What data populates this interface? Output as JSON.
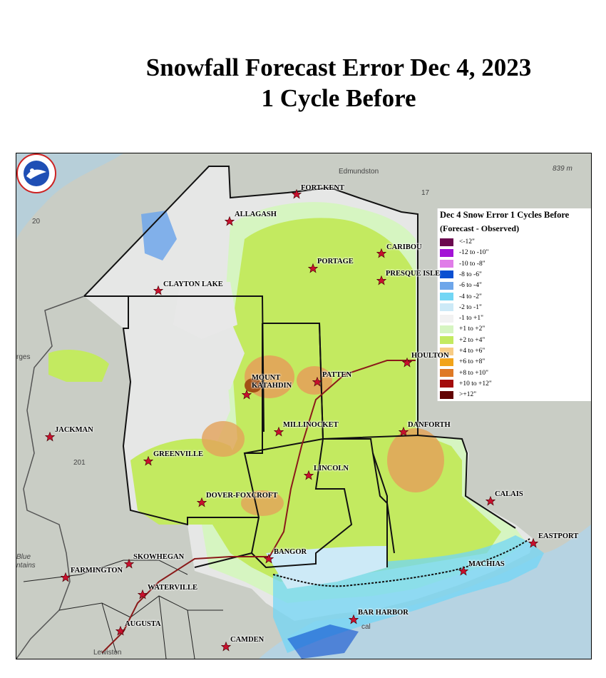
{
  "title": {
    "line1": "Snowfall Forecast Error Dec 4, 2023",
    "line2": "1 Cycle Before"
  },
  "legend": {
    "title": "Dec 4 Snow Error 1 Cycles Before",
    "subtitle": "(Forecast - Observed)",
    "items": [
      {
        "label": "<-12\"",
        "color": "#6b0a4f"
      },
      {
        "label": "-12 to -10\"",
        "color": "#a313d6"
      },
      {
        "label": "-10 to -8\"",
        "color": "#e07de8"
      },
      {
        "label": "-8 to -6\"",
        "color": "#0a4fd1"
      },
      {
        "label": "-6 to -4\"",
        "color": "#6ea6ea"
      },
      {
        "label": "-4 to -2\"",
        "color": "#72d6f5"
      },
      {
        "label": "-2 to -1\"",
        "color": "#cdeaf7"
      },
      {
        "label": "-1 to +1\"",
        "color": "#f2f2f2"
      },
      {
        "label": "+1 to +2\"",
        "color": "#d6f5c1"
      },
      {
        "label": "+2 to +4\"",
        "color": "#c3ea60"
      },
      {
        "label": "+4 to +6\"",
        "color": "#f7cc85"
      },
      {
        "label": "+6 to +8\"",
        "color": "#f2a41b"
      },
      {
        "label": "+8 to +10\"",
        "color": "#df7a26"
      },
      {
        "label": "+10 to +12\"",
        "color": "#a40d0d"
      },
      {
        "label": ">+12\"",
        "color": "#620303"
      }
    ]
  },
  "cities": [
    {
      "name": "FORT KENT",
      "id": "fort-kent"
    },
    {
      "name": "ALLAGASH",
      "id": "allagash"
    },
    {
      "name": "CARIBOU",
      "id": "caribou"
    },
    {
      "name": "PORTAGE",
      "id": "portage"
    },
    {
      "name": "PRESQUE ISLE",
      "id": "presque-isle"
    },
    {
      "name": "CLAYTON LAKE",
      "id": "clayton-lake"
    },
    {
      "name": "HOULTON",
      "id": "houlton"
    },
    {
      "name": "MOUNT KATAHDIN",
      "id": "mount-katahdin"
    },
    {
      "name": "PATTEN",
      "id": "patten"
    },
    {
      "name": "MILLINOCKET",
      "id": "millinocket"
    },
    {
      "name": "DANFORTH",
      "id": "danforth"
    },
    {
      "name": "JACKMAN",
      "id": "jackman"
    },
    {
      "name": "GREENVILLE",
      "id": "greenville"
    },
    {
      "name": "LINCOLN",
      "id": "lincoln"
    },
    {
      "name": "DOVER-FOXCROFT",
      "id": "dover-foxcroft"
    },
    {
      "name": "CALAIS",
      "id": "calais"
    },
    {
      "name": "EASTPORT",
      "id": "eastport"
    },
    {
      "name": "BANGOR",
      "id": "bangor"
    },
    {
      "name": "SKOWHEGAN",
      "id": "skowhegan"
    },
    {
      "name": "MACHIAS",
      "id": "machias"
    },
    {
      "name": "FARMINGTON",
      "id": "farmington"
    },
    {
      "name": "WATERVILLE",
      "id": "waterville"
    },
    {
      "name": "BAR HARBOR",
      "id": "bar-harbor"
    },
    {
      "name": "AUGUSTA",
      "id": "augusta"
    },
    {
      "name": "CAMDEN",
      "id": "camden"
    }
  ],
  "basemap": {
    "edmundston": "Edmundston",
    "elevation": "839 m",
    "route17": "17",
    "route20": "20",
    "route201": "201",
    "gorges": "rges",
    "blue_mountains_1": "Blue",
    "blue_mountains_2": "ntains",
    "lewiston": "Lewiston",
    "bar_harbor_small": "cal"
  },
  "colors": {
    "star": "#c8102e",
    "border": "#111111",
    "water": "#b6d3e2",
    "land": "#c8ccc2"
  }
}
